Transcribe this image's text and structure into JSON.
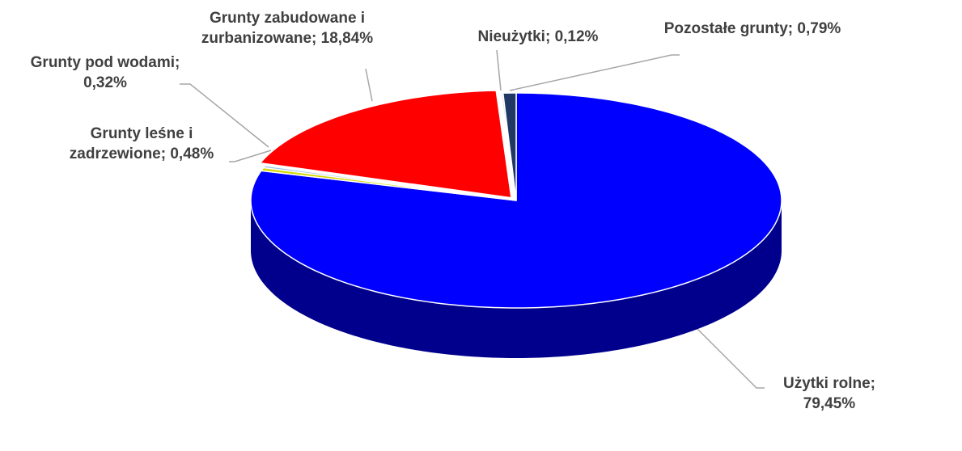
{
  "chart_data": {
    "type": "pie3d",
    "categories": [
      "Użytki rolne;",
      "Grunty leśne i zadrzewione;",
      "Grunty pod wodami;",
      "Grunty zabudowane i zurbanizowane;",
      "Nieużytki;",
      "Pozostałe grunty;"
    ],
    "values": [
      79.45,
      0.48,
      0.32,
      18.84,
      0.12,
      0.79
    ],
    "value_labels": [
      "79,45%",
      "0,48%",
      "0,32%",
      "18,84%",
      "0,12%",
      "0,79%"
    ],
    "colors": [
      "#0000ff",
      "#d6d600",
      "#9dc3e6",
      "#ff0000",
      "#e0e0e0",
      "#1f3864"
    ]
  }
}
